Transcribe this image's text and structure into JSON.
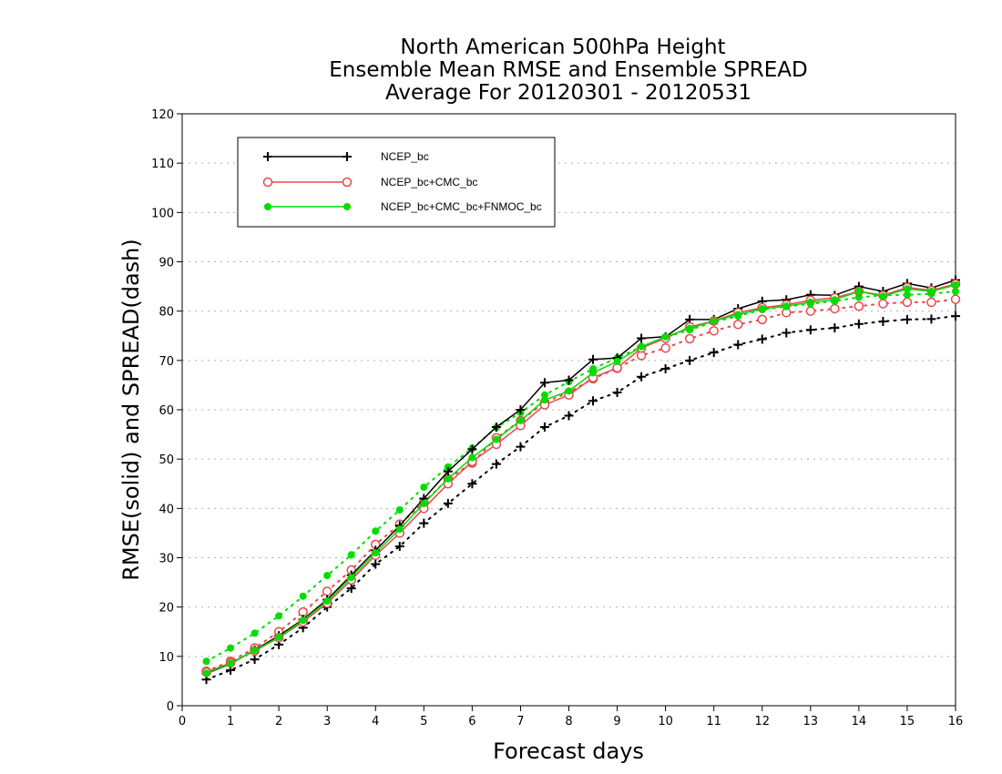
{
  "chart_data": {
    "type": "line",
    "title": [
      "North American 500hPa Height",
      "Ensemble Mean RMSE and Ensemble SPREAD",
      "Average For 20120301 - 20120531"
    ],
    "xlabel": "Forecast days",
    "ylabel": "RMSE(solid) and SPREAD(dash)",
    "xlim": [
      0,
      16
    ],
    "ylim": [
      0,
      120
    ],
    "xticks": [
      "0",
      "1",
      "2",
      "3",
      "4",
      "5",
      "6",
      "7",
      "8",
      "9",
      "10",
      "11",
      "12",
      "13",
      "14",
      "15",
      "16"
    ],
    "yticks": [
      "0",
      "10",
      "20",
      "30",
      "40",
      "50",
      "60",
      "70",
      "80",
      "90",
      "100",
      "110",
      "120"
    ],
    "grid": "horizontal dotted",
    "legend_position": "top-left",
    "x": [
      0.5,
      1,
      1.5,
      2,
      2.5,
      3,
      3.5,
      4,
      4.5,
      5,
      5.5,
      6,
      6.5,
      7,
      7.5,
      8,
      8.5,
      9,
      9.5,
      10,
      10.5,
      11,
      11.5,
      12,
      12.5,
      13,
      13.5,
      14,
      14.5,
      15,
      15.5,
      16
    ],
    "series": [
      {
        "name": "NCEP_bc",
        "metric": "RMSE",
        "style": "solid",
        "color": "#000000",
        "marker": "plus",
        "values": [
          6.5,
          8.5,
          11.3,
          14.2,
          17.5,
          21.5,
          26.5,
          31.5,
          36.5,
          42.0,
          47.5,
          52.0,
          56.5,
          60.0,
          65.5,
          66.0,
          70.2,
          70.5,
          74.5,
          74.8,
          78.3,
          78.3,
          80.5,
          82.0,
          82.3,
          83.3,
          83.2,
          85.0,
          84.0,
          85.6,
          84.7,
          86.3
        ]
      },
      {
        "name": "NCEP_bc+CMC_bc",
        "metric": "RMSE",
        "style": "solid",
        "color": "#e8484c",
        "marker": "open-circle",
        "values": [
          6.8,
          8.7,
          11.1,
          13.8,
          17.0,
          20.8,
          25.5,
          30.5,
          35.0,
          40.0,
          45.0,
          49.5,
          53.0,
          56.8,
          61.0,
          63.0,
          66.5,
          68.5,
          72.5,
          74.5,
          76.8,
          78.0,
          79.7,
          80.7,
          81.3,
          82.2,
          82.7,
          84.0,
          83.2,
          84.8,
          84.2,
          85.5
        ]
      },
      {
        "name": "NCEP_bc+CMC_bc+FNMOC_bc",
        "metric": "RMSE",
        "style": "solid",
        "color": "#00dd00",
        "marker": "filled-circle",
        "values": [
          6.6,
          8.6,
          11.2,
          13.9,
          17.3,
          21.2,
          26.0,
          31.0,
          35.8,
          41.0,
          46.0,
          50.3,
          54.0,
          57.8,
          62.0,
          63.8,
          67.5,
          69.8,
          72.8,
          74.8,
          76.5,
          78.0,
          79.3,
          80.5,
          81.0,
          81.8,
          82.3,
          84.0,
          83.0,
          84.5,
          84.0,
          85.3
        ]
      },
      {
        "name": "NCEP_bc",
        "metric": "SPREAD",
        "style": "dash",
        "color": "#000000",
        "marker": "plus",
        "values": [
          5.3,
          7.2,
          9.4,
          12.4,
          15.8,
          20.0,
          23.8,
          28.7,
          32.3,
          37.0,
          41.0,
          45.0,
          49.0,
          52.5,
          56.5,
          58.8,
          61.8,
          63.5,
          66.7,
          68.3,
          70.0,
          71.6,
          73.2,
          74.3,
          75.6,
          76.2,
          76.6,
          77.4,
          77.9,
          78.3,
          78.4,
          79.0
        ]
      },
      {
        "name": "NCEP_bc+CMC_bc",
        "metric": "SPREAD",
        "style": "dash",
        "color": "#e8484c",
        "marker": "open-circle",
        "values": [
          7.0,
          9.0,
          11.7,
          15.0,
          19.0,
          23.2,
          27.5,
          32.7,
          36.8,
          41.2,
          46.0,
          49.2,
          54.3,
          57.8,
          61.5,
          63.5,
          66.3,
          68.4,
          71.0,
          72.5,
          74.4,
          76.0,
          77.3,
          78.3,
          79.7,
          80.0,
          80.5,
          81.0,
          81.5,
          81.8,
          81.8,
          82.4
        ]
      },
      {
        "name": "NCEP_bc+CMC_bc+FNMOC_bc",
        "metric": "SPREAD",
        "style": "dash",
        "color": "#00dd00",
        "marker": "filled-circle",
        "values": [
          9.0,
          11.7,
          14.7,
          18.2,
          22.2,
          26.4,
          30.6,
          35.4,
          39.7,
          44.3,
          48.4,
          52.2,
          56.4,
          59.4,
          63.0,
          65.7,
          68.3,
          70.5,
          72.8,
          74.7,
          76.2,
          77.8,
          79.0,
          80.3,
          80.9,
          81.5,
          82.0,
          82.8,
          83.2,
          83.3,
          83.5,
          84.0
        ]
      }
    ],
    "legend": [
      {
        "label": "NCEP_bc",
        "color": "#000000",
        "marker": "plus"
      },
      {
        "label": "NCEP_bc+CMC_bc",
        "color": "#e8484c",
        "marker": "open-circle"
      },
      {
        "label": "NCEP_bc+CMC_bc+FNMOC_bc",
        "color": "#00dd00",
        "marker": "filled-circle"
      }
    ]
  }
}
